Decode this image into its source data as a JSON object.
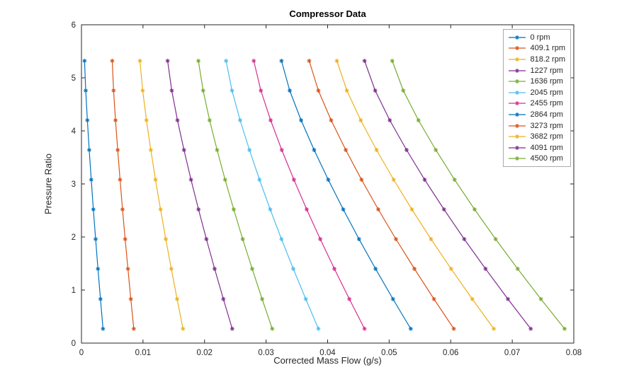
{
  "chart_data": {
    "type": "line",
    "title": "Compressor Data",
    "xlabel": "Corrected Mass Flow (g/s)",
    "ylabel": "Pressure Ratio",
    "xlim": [
      0,
      0.08
    ],
    "ylim": [
      0,
      6
    ],
    "grid": false,
    "legend_position": "top-right-inside",
    "marker": "asterisk",
    "axis_color": "#262626",
    "x_ticks": [
      0,
      0.01,
      0.02,
      0.03,
      0.04,
      0.05,
      0.06,
      0.07,
      0.08
    ],
    "x_tick_labels": [
      "0",
      "0.01",
      "0.02",
      "0.03",
      "0.04",
      "0.05",
      "0.06",
      "0.07",
      "0.08"
    ],
    "y_ticks": [
      0,
      1,
      2,
      3,
      4,
      5,
      6
    ],
    "y_tick_labels": [
      "0",
      "1",
      "2",
      "3",
      "4",
      "5",
      "6"
    ],
    "pressure_ratios": [
      5.32,
      4.76,
      4.2,
      3.64,
      3.08,
      2.52,
      1.96,
      1.4,
      0.83,
      0.27
    ],
    "series": [
      {
        "name": "0 rpm",
        "color": "#0072BD",
        "mass_flow": [
          0.0005,
          0.00069,
          0.00096,
          0.00126,
          0.00159,
          0.00193,
          0.0023,
          0.00268,
          0.00309,
          0.0035
        ]
      },
      {
        "name": "409.1 rpm",
        "color": "#D95319",
        "mass_flow": [
          0.005,
          0.00522,
          0.00553,
          0.00589,
          0.00627,
          0.00667,
          0.0071,
          0.00755,
          0.00802,
          0.0085
        ]
      },
      {
        "name": "818.2 rpm",
        "color": "#EDB120",
        "mass_flow": [
          0.0095,
          0.00995,
          0.01056,
          0.01127,
          0.01203,
          0.01285,
          0.0137,
          0.0146,
          0.01554,
          0.0165
        ]
      },
      {
        "name": "1227 rpm",
        "color": "#7E2F8E",
        "mass_flow": [
          0.014,
          0.01467,
          0.0156,
          0.01666,
          0.0178,
          0.01902,
          0.0203,
          0.02164,
          0.02306,
          0.0245
        ]
      },
      {
        "name": "1636 rpm",
        "color": "#77AC30",
        "mass_flow": [
          0.019,
          0.01977,
          0.02082,
          0.02204,
          0.02334,
          0.02474,
          0.0262,
          0.02774,
          0.02936,
          0.031
        ]
      },
      {
        "name": "2045 rpm",
        "color": "#4DBEEE",
        "mass_flow": [
          0.0235,
          0.02446,
          0.02578,
          0.0273,
          0.02893,
          0.03067,
          0.0325,
          0.03442,
          0.03645,
          0.0385
        ]
      },
      {
        "name": "2455 rpm",
        "color": "#D6308F",
        "mass_flow": [
          0.028,
          0.02915,
          0.03074,
          0.03255,
          0.03452,
          0.0366,
          0.0388,
          0.0411,
          0.04353,
          0.046
        ]
      },
      {
        "name": "2864 rpm",
        "color": "#0072BD",
        "mass_flow": [
          0.0325,
          0.03384,
          0.03569,
          0.03781,
          0.0401,
          0.04254,
          0.0451,
          0.04779,
          0.05062,
          0.0535
        ]
      },
      {
        "name": "3273 rpm",
        "color": "#D95319",
        "mass_flow": [
          0.037,
          0.0385,
          0.04057,
          0.04295,
          0.04551,
          0.04823,
          0.0511,
          0.05411,
          0.05728,
          0.0605
        ]
      },
      {
        "name": "3682 rpm",
        "color": "#EDB120",
        "mass_flow": [
          0.0415,
          0.04313,
          0.04538,
          0.04795,
          0.05073,
          0.05369,
          0.0568,
          0.06006,
          0.06351,
          0.067
        ]
      },
      {
        "name": "4091 rpm",
        "color": "#7E2F8E",
        "mass_flow": [
          0.046,
          0.04773,
          0.0501,
          0.05283,
          0.05577,
          0.05891,
          0.0622,
          0.06566,
          0.0693,
          0.073
        ]
      },
      {
        "name": "4500 rpm",
        "color": "#77AC30",
        "mass_flow": [
          0.0505,
          0.05229,
          0.05476,
          0.05758,
          0.06063,
          0.06388,
          0.0673,
          0.07088,
          0.07466,
          0.0785
        ]
      }
    ]
  }
}
